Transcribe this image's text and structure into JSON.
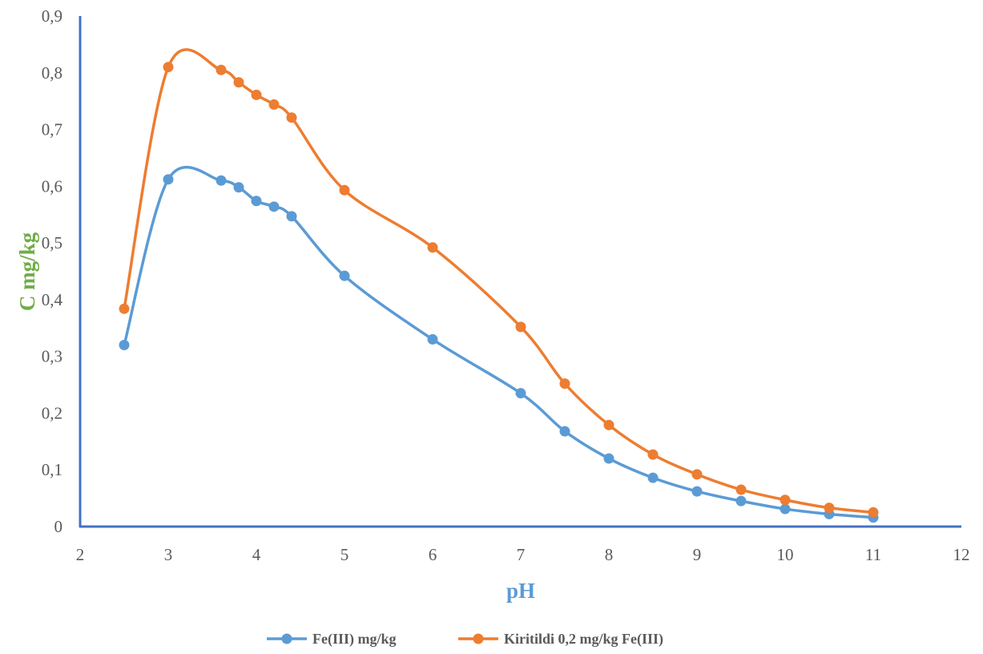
{
  "chart_data": {
    "type": "line",
    "title": "",
    "xlabel": "pH",
    "ylabel": "C mg/kg",
    "xlim": [
      2,
      12
    ],
    "ylim": [
      0,
      0.9
    ],
    "x_ticks": [
      2,
      3,
      4,
      5,
      6,
      7,
      8,
      9,
      10,
      11,
      12
    ],
    "x_tick_labels": [
      "2",
      "3",
      "4",
      "5",
      "6",
      "7",
      "8",
      "9",
      "10",
      "11",
      "12"
    ],
    "y_ticks": [
      0,
      0.1,
      0.2,
      0.3,
      0.4,
      0.5,
      0.6,
      0.7,
      0.8,
      0.9
    ],
    "y_tick_labels": [
      "0",
      "0,1",
      "0,2",
      "0,3",
      "0,4",
      "0,5",
      "0,6",
      "0,7",
      "0,8",
      "0,9"
    ],
    "grid": false,
    "legend_position": "bottom",
    "smoothed": true,
    "series": [
      {
        "name": "Fe(III) mg/kg",
        "color": "#5B9BD5",
        "x": [
          2.5,
          3.0,
          3.6,
          3.8,
          4.0,
          4.2,
          4.4,
          5.0,
          6.0,
          7.0,
          7.5,
          8.0,
          8.5,
          9.0,
          9.5,
          10.0,
          10.5,
          11.0
        ],
        "y": [
          0.32,
          0.612,
          0.61,
          0.598,
          0.574,
          0.564,
          0.547,
          0.442,
          0.33,
          0.235,
          0.168,
          0.12,
          0.086,
          0.062,
          0.045,
          0.031,
          0.022,
          0.016
        ]
      },
      {
        "name": "Kiritildi 0,2 mg/kg Fe(III)",
        "color": "#ED7D31",
        "x": [
          2.5,
          3.0,
          3.6,
          3.8,
          4.0,
          4.2,
          4.4,
          5.0,
          6.0,
          7.0,
          7.5,
          8.0,
          8.5,
          9.0,
          9.5,
          10.0,
          10.5,
          11.0
        ],
        "y": [
          0.384,
          0.81,
          0.805,
          0.783,
          0.761,
          0.744,
          0.721,
          0.593,
          0.492,
          0.352,
          0.252,
          0.179,
          0.127,
          0.092,
          0.065,
          0.047,
          0.033,
          0.025
        ]
      }
    ],
    "axis_color": "#4472C4",
    "xlabel_color": "#5B9BD5",
    "ylabel_color": "#70AD47"
  }
}
